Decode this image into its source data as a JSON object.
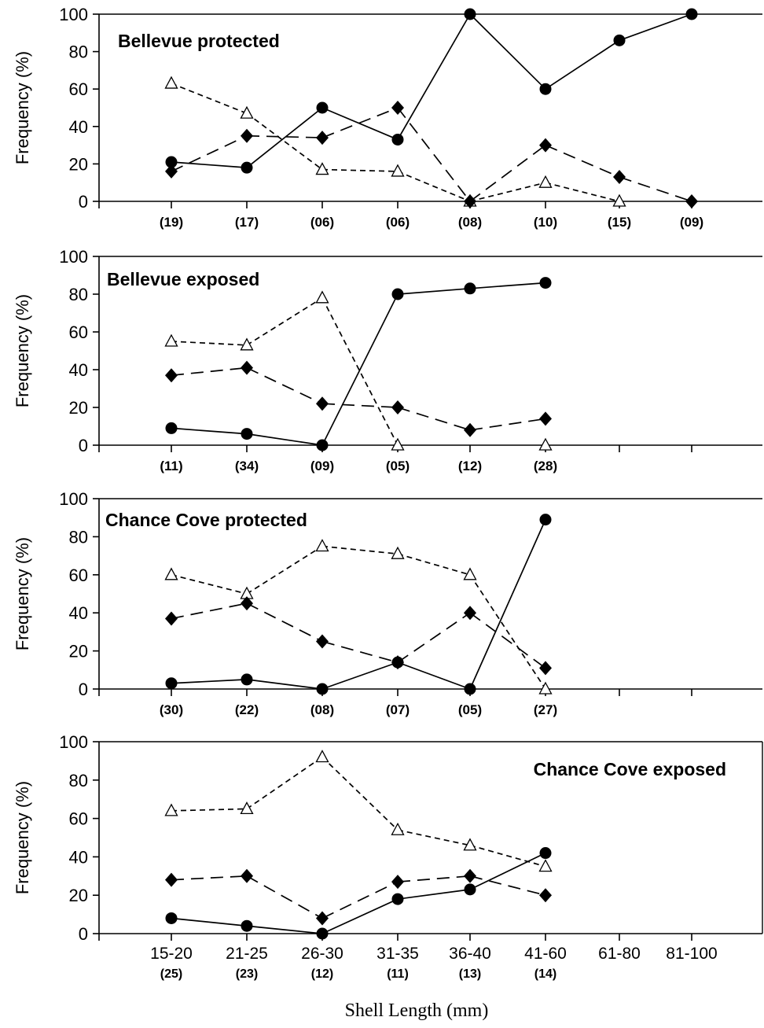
{
  "figure": {
    "xlabel": "Shell Length (mm)",
    "shared_categories": [
      "15-20",
      "21-25",
      "26-30",
      "31-35",
      "36-40",
      "41-60",
      "61-80",
      "81-100"
    ]
  },
  "chart_data": [
    {
      "type": "line",
      "title": "Bellevue protected",
      "ylabel": "Frequency (%)",
      "ylim": [
        0,
        100
      ],
      "yticks": [
        0,
        20,
        40,
        60,
        80,
        100
      ],
      "categories": [
        "15-20",
        "21-25",
        "26-30",
        "31-35",
        "36-40",
        "41-60",
        "61-80",
        "81-100"
      ],
      "sample_sizes": [
        "(19)",
        "(17)",
        "(06)",
        "(06)",
        "(08)",
        "(10)",
        "(15)",
        "(09)"
      ],
      "show_category_labels": false,
      "series": [
        {
          "marker": "triangle-open",
          "line": "short-dash",
          "values": [
            63,
            47,
            17,
            16,
            0,
            10,
            0,
            null
          ]
        },
        {
          "marker": "diamond-filled",
          "line": "long-dash",
          "values": [
            16,
            35,
            34,
            50,
            0,
            30,
            13,
            0
          ]
        },
        {
          "marker": "circle-filled",
          "line": "solid",
          "values": [
            21,
            18,
            50,
            33,
            100,
            60,
            86,
            100
          ]
        }
      ]
    },
    {
      "type": "line",
      "title": "Bellevue exposed",
      "ylabel": "Frequency (%)",
      "ylim": [
        0,
        100
      ],
      "yticks": [
        0,
        20,
        40,
        60,
        80,
        100
      ],
      "categories": [
        "15-20",
        "21-25",
        "26-30",
        "31-35",
        "36-40",
        "41-60",
        "61-80",
        "81-100"
      ],
      "sample_sizes": [
        "(11)",
        "(34)",
        "(09)",
        "(05)",
        "(12)",
        "(28)",
        "",
        ""
      ],
      "show_category_labels": false,
      "series": [
        {
          "marker": "triangle-open",
          "line": "short-dash",
          "values": [
            55,
            53,
            78,
            0,
            null,
            0,
            null,
            null
          ]
        },
        {
          "marker": "diamond-filled",
          "line": "long-dash",
          "values": [
            37,
            41,
            22,
            20,
            8,
            14,
            null,
            null
          ]
        },
        {
          "marker": "circle-filled",
          "line": "solid",
          "values": [
            9,
            6,
            0,
            80,
            83,
            86,
            null,
            null
          ]
        }
      ]
    },
    {
      "type": "line",
      "title": "Chance Cove protected",
      "ylabel": "Frequency (%)",
      "ylim": [
        0,
        100
      ],
      "yticks": [
        0,
        20,
        40,
        60,
        80,
        100
      ],
      "categories": [
        "15-20",
        "21-25",
        "26-30",
        "31-35",
        "36-40",
        "41-60",
        "61-80",
        "81-100"
      ],
      "sample_sizes": [
        "(30)",
        "(22)",
        "(08)",
        "(07)",
        "(05)",
        "(27)",
        "",
        ""
      ],
      "show_category_labels": false,
      "series": [
        {
          "marker": "triangle-open",
          "line": "short-dash",
          "values": [
            60,
            50,
            75,
            71,
            60,
            0,
            null,
            null
          ]
        },
        {
          "marker": "diamond-filled",
          "line": "long-dash",
          "values": [
            37,
            45,
            25,
            14,
            40,
            11,
            null,
            null
          ]
        },
        {
          "marker": "circle-filled",
          "line": "solid",
          "values": [
            3,
            5,
            0,
            14,
            0,
            89,
            null,
            null
          ]
        }
      ]
    },
    {
      "type": "line",
      "title": "Chance Cove exposed",
      "ylabel": "Frequency (%)",
      "ylim": [
        0,
        100
      ],
      "yticks": [
        0,
        20,
        40,
        60,
        80,
        100
      ],
      "categories": [
        "15-20",
        "21-25",
        "26-30",
        "31-35",
        "36-40",
        "41-60",
        "61-80",
        "81-100"
      ],
      "sample_sizes": [
        "(25)",
        "(23)",
        "(12)",
        "(11)",
        "(13)",
        "(14)",
        "",
        ""
      ],
      "show_category_labels": true,
      "series": [
        {
          "marker": "triangle-open",
          "line": "short-dash",
          "values": [
            64,
            65,
            92,
            54,
            46,
            35,
            null,
            null
          ]
        },
        {
          "marker": "diamond-filled",
          "line": "long-dash",
          "values": [
            28,
            30,
            8,
            27,
            30,
            20,
            null,
            null
          ]
        },
        {
          "marker": "circle-filled",
          "line": "solid",
          "values": [
            8,
            4,
            0,
            18,
            23,
            42,
            null,
            null
          ]
        }
      ]
    }
  ]
}
